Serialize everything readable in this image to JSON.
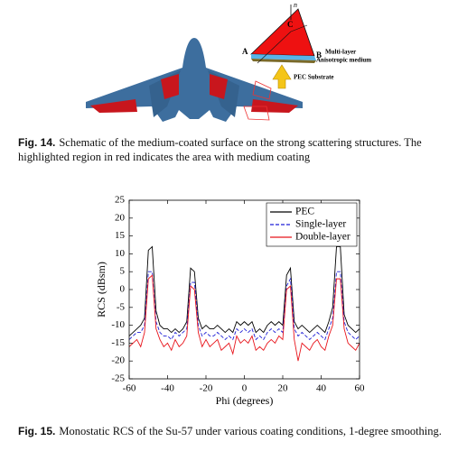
{
  "figure14": {
    "labels": {
      "normal": "n",
      "a": "A",
      "b": "B",
      "c": "C",
      "multi_layer": "Multi-layer",
      "medium": "Anisotropic medium",
      "substrate": "PEC Substrate"
    },
    "caption": {
      "label": "Fig. 14.",
      "text": "Schematic of the medium-coated surface on the strong scattering structures. The highlighted region in red indicates the area with medium coating"
    }
  },
  "chart_data": {
    "type": "line",
    "xlabel": "Phi (degrees)",
    "ylabel": "RCS (dBsm)",
    "x": [
      -60,
      -58,
      -56,
      -54,
      -52,
      -50,
      -48,
      -46,
      -44,
      -42,
      -40,
      -38,
      -36,
      -34,
      -32,
      -30,
      -28,
      -26,
      -24,
      -22,
      -20,
      -18,
      -16,
      -14,
      -12,
      -10,
      -8,
      -6,
      -4,
      -2,
      0,
      2,
      4,
      6,
      8,
      10,
      12,
      14,
      16,
      18,
      20,
      22,
      24,
      26,
      28,
      30,
      32,
      34,
      36,
      38,
      40,
      42,
      44,
      46,
      48,
      50,
      52,
      54,
      56,
      58,
      60
    ],
    "series": [
      {
        "name": "PEC",
        "color": "#000000",
        "linestyle": "solid",
        "values": [
          -13,
          -12,
          -11,
          -10,
          -8,
          11,
          12,
          -6,
          -10,
          -11,
          -11,
          -12,
          -11,
          -12,
          -11,
          -9,
          6,
          5,
          -8,
          -11,
          -10,
          -11,
          -11,
          -10,
          -11,
          -12,
          -11,
          -12,
          -9,
          -10,
          -9,
          -10,
          -9,
          -12,
          -11,
          -12,
          -10,
          -9,
          -10,
          -9,
          -10,
          4,
          6,
          -9,
          -11,
          -10,
          -11,
          -12,
          -11,
          -10,
          -11,
          -12,
          -9,
          -5,
          12,
          12,
          -7,
          -10,
          -11,
          -12,
          -11
        ]
      },
      {
        "name": "Single-layer",
        "color": "#1f1fd6",
        "linestyle": "dashed",
        "values": [
          -14,
          -13,
          -12,
          -12,
          -10,
          5,
          5,
          -9,
          -12,
          -13,
          -13,
          -14,
          -12,
          -13,
          -12,
          -11,
          2,
          2,
          -10,
          -13,
          -12,
          -13,
          -13,
          -12,
          -13,
          -14,
          -13,
          -14,
          -11,
          -12,
          -11,
          -12,
          -11,
          -14,
          -13,
          -14,
          -12,
          -11,
          -12,
          -11,
          -12,
          1,
          3,
          -11,
          -13,
          -12,
          -13,
          -14,
          -13,
          -12,
          -13,
          -14,
          -11,
          -8,
          5,
          5,
          -9,
          -12,
          -13,
          -14,
          -13
        ]
      },
      {
        "name": "Double-layer",
        "color": "#e8141b",
        "linestyle": "solid",
        "values": [
          -16,
          -15,
          -14,
          -16,
          -12,
          3,
          4,
          -11,
          -14,
          -16,
          -15,
          -17,
          -14,
          -16,
          -15,
          -13,
          1,
          0,
          -12,
          -16,
          -14,
          -16,
          -15,
          -14,
          -17,
          -16,
          -15,
          -18,
          -13,
          -15,
          -14,
          -15,
          -13,
          -17,
          -16,
          -17,
          -15,
          -14,
          -15,
          -13,
          -14,
          0,
          1,
          -14,
          -20,
          -15,
          -16,
          -17,
          -15,
          -14,
          -16,
          -17,
          -13,
          -10,
          3,
          3,
          -11,
          -15,
          -16,
          -17,
          -15
        ]
      }
    ],
    "xlim": [
      -60,
      60
    ],
    "ylim": [
      -25,
      25
    ],
    "xticks": [
      -60,
      -40,
      -20,
      0,
      20,
      40,
      60
    ],
    "yticks": [
      -25,
      -20,
      -15,
      -10,
      -5,
      0,
      5,
      10,
      15,
      20,
      25
    ],
    "legend": "upper right"
  },
  "figure15_caption": {
    "label": "Fig. 15.",
    "text": "Monostatic RCS of the Su-57 under various coating conditions, 1-degree smoothing."
  }
}
